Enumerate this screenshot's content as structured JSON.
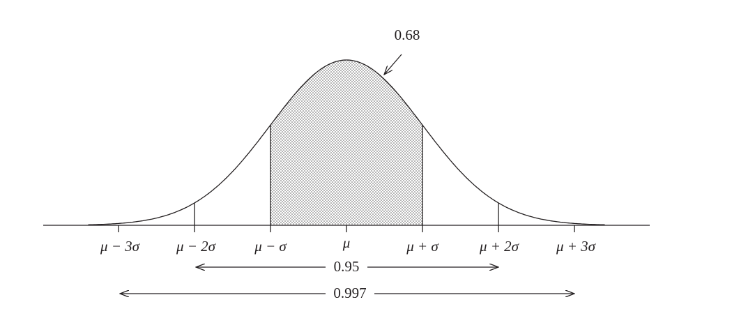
{
  "axis_labels": [
    "μ − 3σ",
    "μ − 2σ",
    "μ − σ",
    "μ",
    "μ + σ",
    "μ + 2σ",
    "μ + 3σ"
  ],
  "annotations": {
    "inner": "0.68",
    "middle": "0.95",
    "outer": "0.997"
  }
}
